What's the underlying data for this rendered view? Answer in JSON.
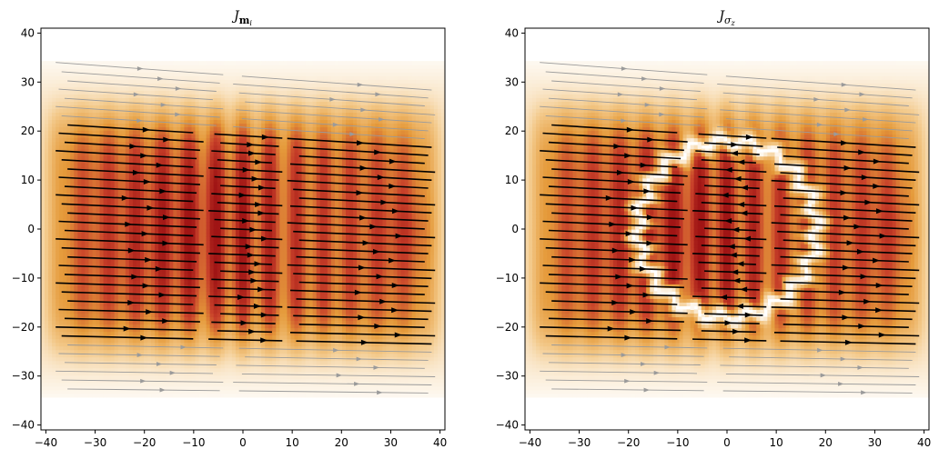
{
  "chart_data": [
    {
      "type": "heatmap",
      "title_main": "J",
      "title_sub": "m",
      "title_subsub": "i",
      "xlim": [
        -41,
        41
      ],
      "ylim": [
        -41,
        41
      ],
      "xticks": [
        "−40",
        "−30",
        "−20",
        "−10",
        "0",
        "10",
        "20",
        "30",
        "40"
      ],
      "yticks": [
        "40",
        "30",
        "20",
        "10",
        "0",
        "−10",
        "−20",
        "−30",
        "−40"
      ],
      "xtick_values": [
        -40,
        -30,
        -20,
        -10,
        0,
        10,
        20,
        30,
        40
      ],
      "ytick_values": [
        40,
        30,
        20,
        10,
        0,
        -10,
        -20,
        -30,
        -40
      ],
      "field": "current magnitude with streamlines flowing left to right",
      "has_hole": false,
      "colormap": [
        "#ffffff",
        "#f3c98a",
        "#e59a3a",
        "#c8412a",
        "#a01515"
      ]
    },
    {
      "type": "heatmap",
      "title_main": "J",
      "title_sub": "σ",
      "title_subsub": "z",
      "xlim": [
        -41,
        41
      ],
      "ylim": [
        -41,
        41
      ],
      "xticks": [
        "−40",
        "−30",
        "−20",
        "−10",
        "0",
        "10",
        "20",
        "30",
        "40"
      ],
      "yticks": [
        "40",
        "30",
        "20",
        "10",
        "0",
        "−10",
        "−20",
        "−30",
        "−40"
      ],
      "xtick_values": [
        -40,
        -30,
        -20,
        -10,
        0,
        10,
        20,
        30,
        40
      ],
      "ytick_values": [
        40,
        30,
        20,
        10,
        0,
        -10,
        -20,
        -30,
        -40
      ],
      "field": "current magnitude with reversed flow inside central ring",
      "has_hole": true,
      "hole_radius": 18,
      "colormap": [
        "#ffffff",
        "#f3c98a",
        "#e59a3a",
        "#c8412a",
        "#a01515"
      ]
    }
  ]
}
